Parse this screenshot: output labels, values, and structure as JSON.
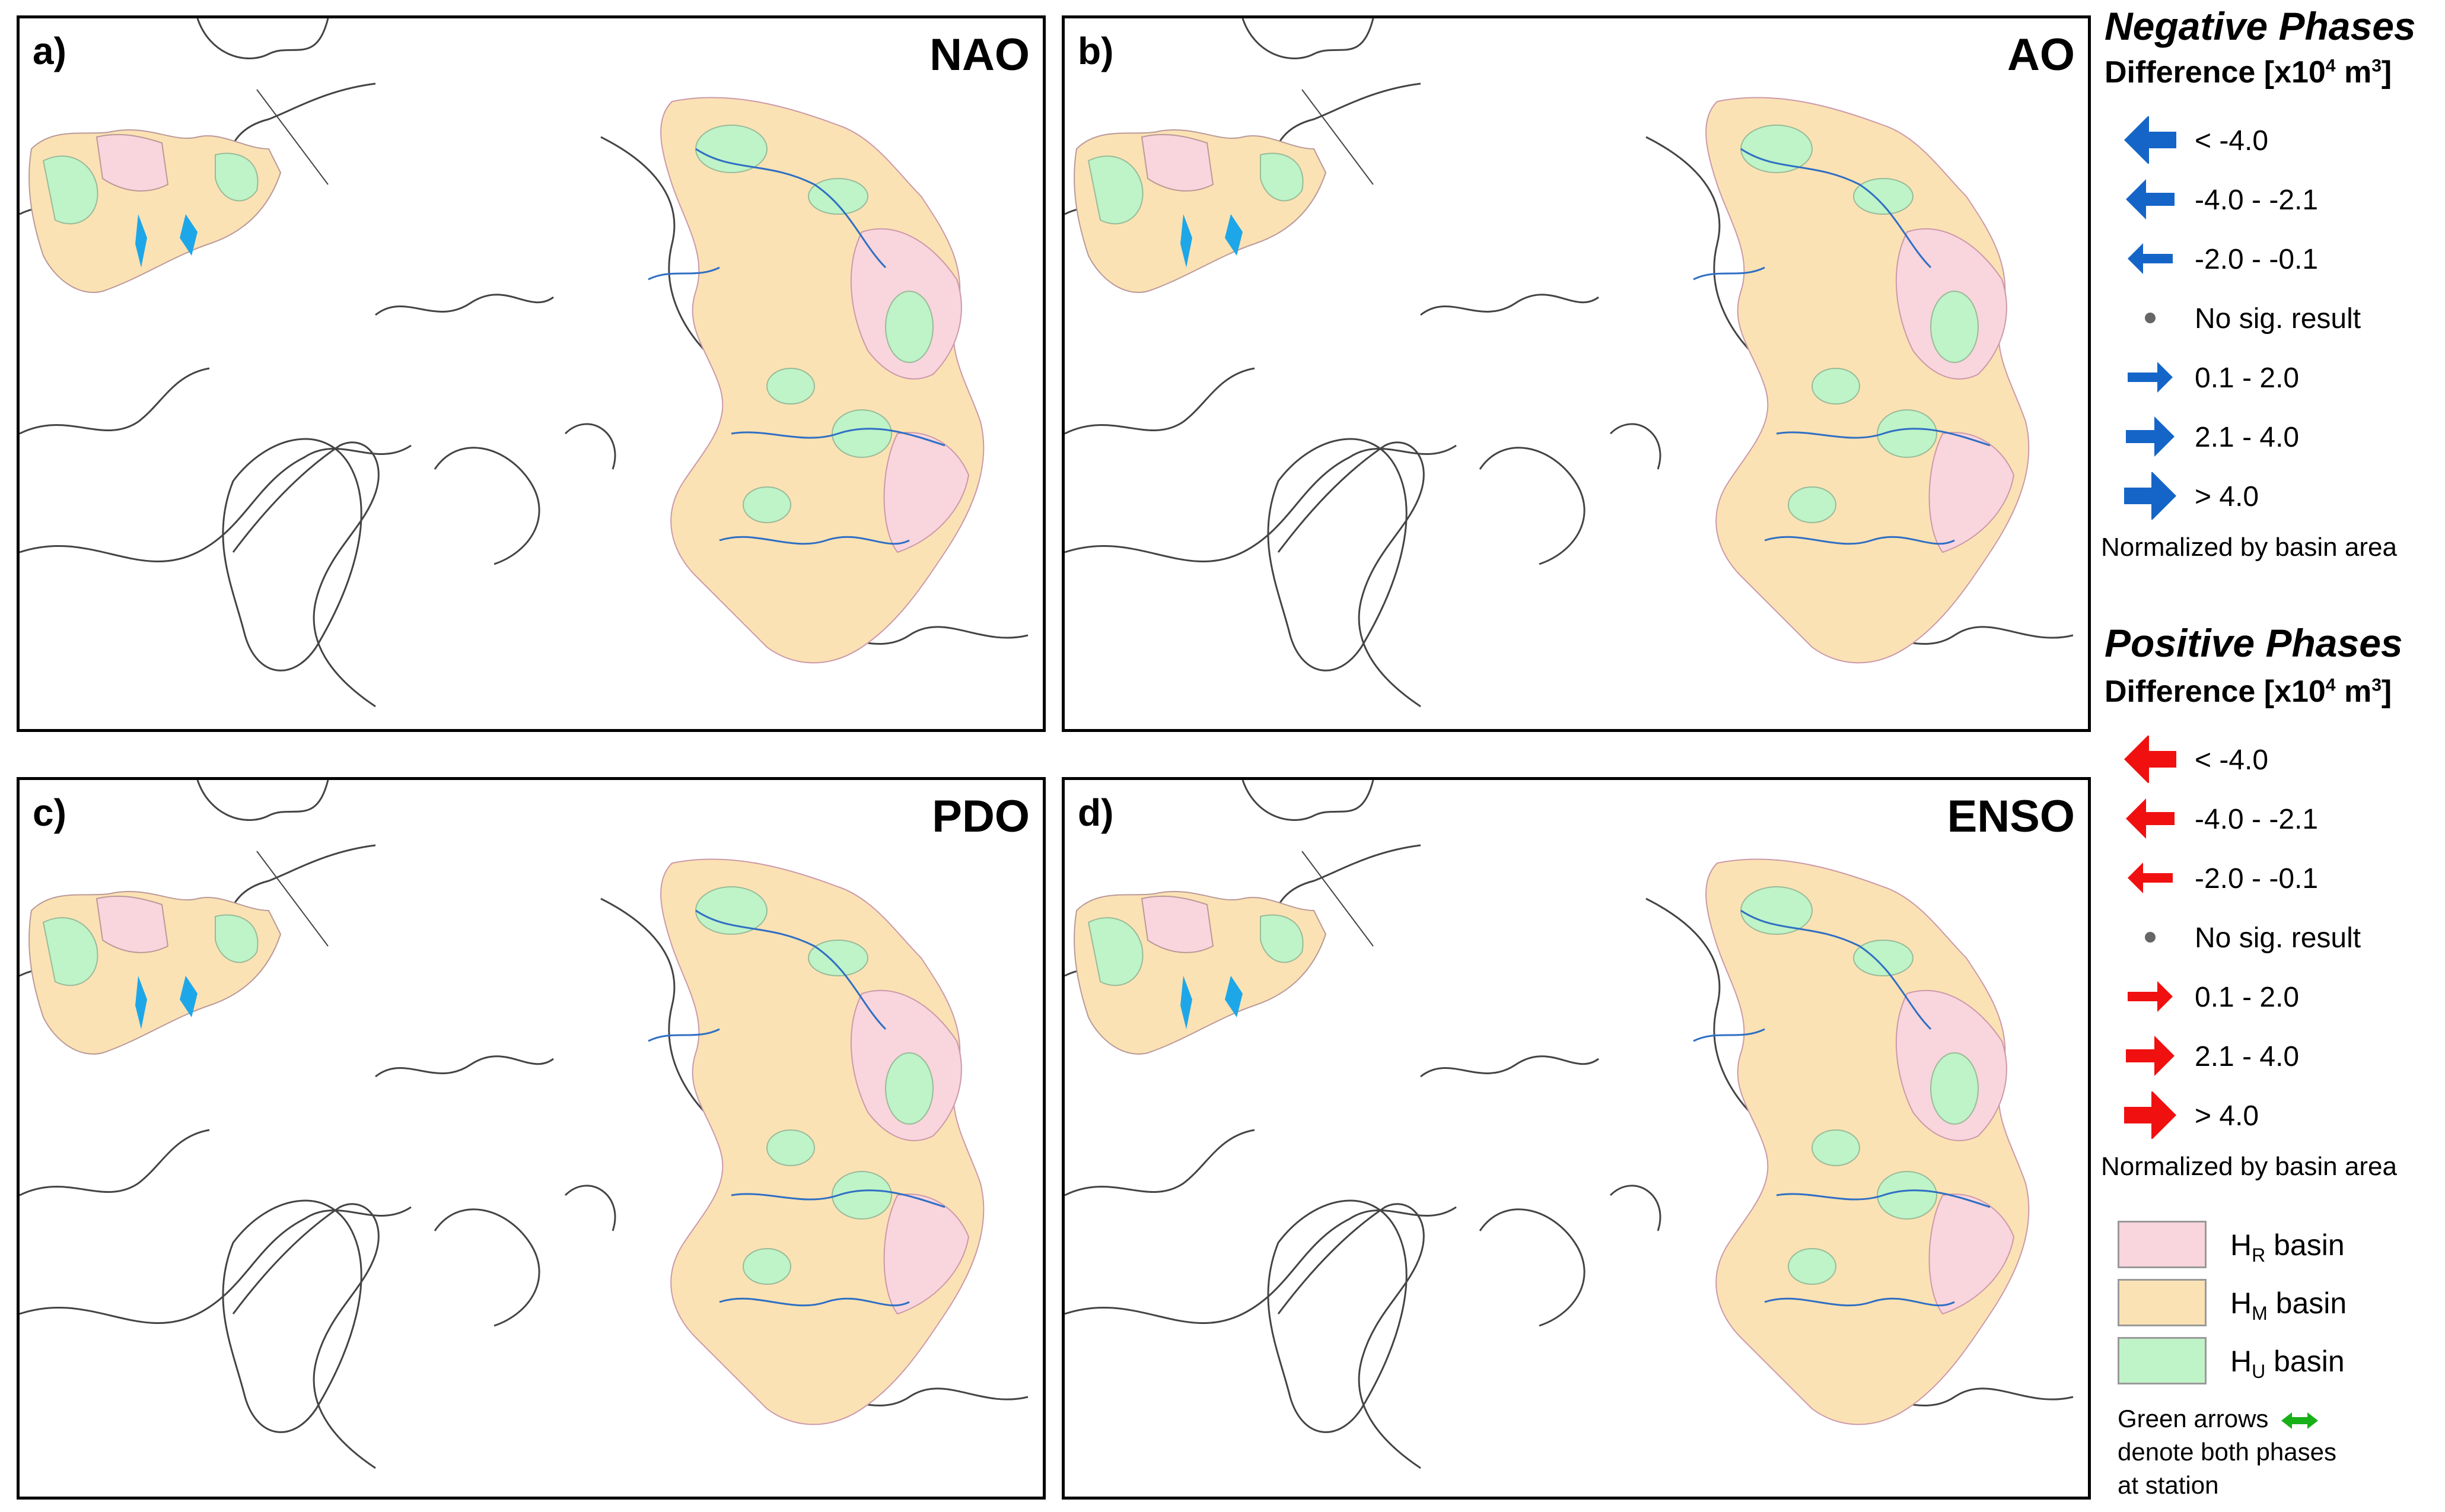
{
  "panels": [
    {
      "letter": "a)",
      "index": "NAO"
    },
    {
      "letter": "b)",
      "index": "AO"
    },
    {
      "letter": "c)",
      "index": "PDO"
    },
    {
      "letter": "d)",
      "index": "ENSO"
    }
  ],
  "legend": {
    "negative": {
      "title": "Negative Phases",
      "subtitle": "Difference [x10",
      "sup": "4",
      "unit_rest": " m",
      "unit_sup": "3",
      "unit_end": "]",
      "items": [
        "< -4.0",
        "-4.0 - -2.1",
        "-2.0 - -0.1",
        "No sig. result",
        "0.1 - 2.0",
        "2.1 - 4.0",
        "> 4.0"
      ],
      "note": "Normalized by basin area",
      "color": "#1565c8"
    },
    "positive": {
      "title": "Positive Phases",
      "subtitle": "Difference [x10",
      "sup": "4",
      "unit_rest": " m",
      "unit_sup": "3",
      "unit_end": "]",
      "items": [
        "< -4.0",
        "-4.0 - -2.1",
        "-2.0 - -0.1",
        "No sig. result",
        "0.1 - 2.0",
        "2.1 - 4.0",
        "> 4.0"
      ],
      "note": "Normalized by basin area",
      "color": "#f01010"
    },
    "basins": [
      {
        "prefix": "H",
        "sub": "R",
        "suffix": " basin",
        "color": "#f9d5dd"
      },
      {
        "prefix": "H",
        "sub": "M",
        "suffix": " basin",
        "color": "#fbe2b4"
      },
      {
        "prefix": "H",
        "sub": "U",
        "suffix": " basin",
        "color": "#bff3c8"
      }
    ],
    "green_note": {
      "line1": "Green arrows",
      "line2": "denote both phases",
      "line3": "at station",
      "color": "#18b018"
    }
  }
}
